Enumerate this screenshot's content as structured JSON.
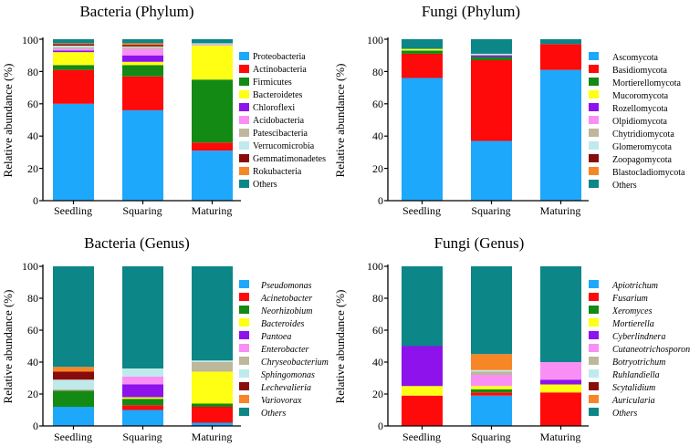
{
  "colors": [
    "#1ea8fc",
    "#ff0a0a",
    "#138a13",
    "#ffff14",
    "#8d12ec",
    "#f98ff5",
    "#bdb79b",
    "#bfeaec",
    "#890c0c",
    "#f78627",
    "#0c8686"
  ],
  "chart_data": [
    {
      "type": "bar",
      "stacked": true,
      "title": "Bacteria (Phylum)",
      "ylabel": "Relative abundance (%)",
      "xlabel": "",
      "ylim": [
        0,
        100
      ],
      "yticks": [
        "0",
        "20",
        "40",
        "60",
        "80",
        "100"
      ],
      "categories": [
        "Seedling",
        "Squaring",
        "Maturing"
      ],
      "legend_italic": false,
      "series": [
        {
          "name": "Proteobacteria",
          "values": [
            60,
            56,
            31
          ]
        },
        {
          "name": "Actinobacteria",
          "values": [
            21,
            21,
            5
          ]
        },
        {
          "name": "Firmicutes",
          "values": [
            3,
            7,
            39
          ]
        },
        {
          "name": "Bacteroidetes",
          "values": [
            8,
            2,
            21
          ]
        },
        {
          "name": "Chloroflexi",
          "values": [
            1,
            4,
            0
          ]
        },
        {
          "name": "Acidobacteria",
          "values": [
            1,
            4,
            0.5
          ]
        },
        {
          "name": "Patescibacteria",
          "values": [
            1,
            1,
            0.5
          ]
        },
        {
          "name": "Verrucomicrobia",
          "values": [
            1,
            0.5,
            0.5
          ]
        },
        {
          "name": "Gemmatimonadetes",
          "values": [
            1,
            1,
            0
          ]
        },
        {
          "name": "Rokubacteria",
          "values": [
            0.5,
            1,
            0
          ]
        },
        {
          "name": "Others",
          "values": [
            2.5,
            2.5,
            2.5
          ]
        }
      ]
    },
    {
      "type": "bar",
      "stacked": true,
      "title": "Fungi (Phylum)",
      "ylabel": "Relative abundance (%)",
      "xlabel": "",
      "ylim": [
        0,
        100
      ],
      "yticks": [
        "0",
        "20",
        "40",
        "60",
        "80",
        "100"
      ],
      "categories": [
        "Seedling",
        "Squaring",
        "Maturing"
      ],
      "legend_italic": false,
      "series": [
        {
          "name": "Ascomycota",
          "values": [
            76,
            37,
            81
          ]
        },
        {
          "name": "Basidiomycota",
          "values": [
            15,
            50,
            16
          ]
        },
        {
          "name": "Mortierellomycota",
          "values": [
            2,
            2,
            0
          ]
        },
        {
          "name": "Mucoromycota",
          "values": [
            1,
            0,
            0
          ]
        },
        {
          "name": "Rozellomycota",
          "values": [
            0,
            1,
            0
          ]
        },
        {
          "name": "Olpidiomycota",
          "values": [
            0,
            0,
            0
          ]
        },
        {
          "name": "Chytridiomycota",
          "values": [
            0,
            0.5,
            0
          ]
        },
        {
          "name": "Glomeromycota",
          "values": [
            0,
            0.5,
            0
          ]
        },
        {
          "name": "Zoopagomycota",
          "values": [
            0,
            0,
            0
          ]
        },
        {
          "name": "Blastocladiomycota",
          "values": [
            0,
            0,
            0
          ]
        },
        {
          "name": "Others",
          "values": [
            6,
            9,
            3
          ]
        }
      ]
    },
    {
      "type": "bar",
      "stacked": true,
      "title": "Bacteria (Genus)",
      "ylabel": "Relative abundance (%)",
      "xlabel": "",
      "ylim": [
        0,
        100
      ],
      "yticks": [
        "0",
        "20",
        "40",
        "60",
        "80",
        "100"
      ],
      "categories": [
        "Seedling",
        "Squaring",
        "Maturing"
      ],
      "legend_italic": true,
      "series": [
        {
          "name": "Pseudomonas",
          "values": [
            12,
            10,
            2
          ]
        },
        {
          "name": "Acinetobacter",
          "values": [
            0,
            3,
            10
          ]
        },
        {
          "name": "Neorhizobium",
          "values": [
            10,
            4,
            2
          ]
        },
        {
          "name": "Bacteroides",
          "values": [
            0,
            1,
            20
          ]
        },
        {
          "name": "Pantoea",
          "values": [
            0,
            8,
            0
          ]
        },
        {
          "name": "Enterobacter",
          "values": [
            0,
            5,
            0
          ]
        },
        {
          "name": "Chryseobacterium",
          "values": [
            1,
            0,
            6
          ]
        },
        {
          "name": "Sphingomonas",
          "values": [
            6,
            5,
            1
          ]
        },
        {
          "name": "Lechevalieria",
          "values": [
            5,
            0,
            0
          ]
        },
        {
          "name": "Variovorax",
          "values": [
            3,
            0,
            0
          ]
        },
        {
          "name": "Others",
          "values": [
            63,
            64,
            59
          ]
        }
      ]
    },
    {
      "type": "bar",
      "stacked": true,
      "title": "Fungi (Genus)",
      "ylabel": "Relative abundance (%)",
      "xlabel": "",
      "ylim": [
        0,
        100
      ],
      "yticks": [
        "0",
        "20",
        "40",
        "60",
        "80",
        "100"
      ],
      "categories": [
        "Seedling",
        "Squaring",
        "Maturing"
      ],
      "legend_italic": true,
      "series": [
        {
          "name": "Apiotrichum",
          "values": [
            0,
            19,
            0
          ]
        },
        {
          "name": "Fusarium",
          "values": [
            19,
            2,
            21
          ]
        },
        {
          "name": "Xeromyces",
          "values": [
            0,
            2,
            0
          ]
        },
        {
          "name": "Mortierella",
          "values": [
            6,
            2,
            5
          ]
        },
        {
          "name": "Cyberlindnera",
          "values": [
            25,
            0,
            3
          ]
        },
        {
          "name": "Cutaneotrichosporon",
          "values": [
            0,
            7,
            11
          ]
        },
        {
          "name": "Botryotrichum",
          "values": [
            0,
            2,
            0
          ]
        },
        {
          "name": "Ruhlandiella",
          "values": [
            0,
            1,
            0
          ]
        },
        {
          "name": "Scytalidium",
          "values": [
            0,
            0,
            0
          ]
        },
        {
          "name": "Auricularia",
          "values": [
            0,
            10,
            0
          ]
        },
        {
          "name": "Others",
          "values": [
            50,
            55,
            60
          ]
        }
      ]
    }
  ]
}
